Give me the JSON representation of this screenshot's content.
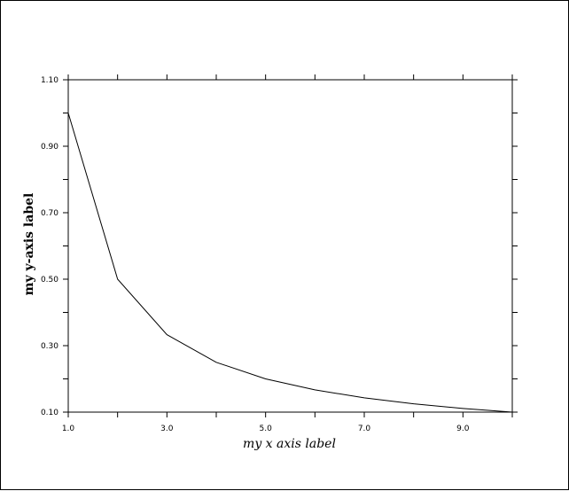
{
  "chart_data": {
    "type": "line",
    "title": "",
    "xlabel": "my x axis label",
    "ylabel": "my y-axis label",
    "xlim": [
      1,
      10
    ],
    "ylim": [
      0.1,
      1.1
    ],
    "grid": false,
    "x_ticks": [
      {
        "value": 1,
        "label": "1.0"
      },
      {
        "value": 3,
        "label": "3.0"
      },
      {
        "value": 5,
        "label": "5.0"
      },
      {
        "value": 7,
        "label": "7.0"
      },
      {
        "value": 9,
        "label": "9.0"
      }
    ],
    "x_minor_ticks": [
      2,
      4,
      6,
      8,
      10
    ],
    "y_ticks": [
      {
        "value": 0.1,
        "label": "0.10"
      },
      {
        "value": 0.3,
        "label": "0.30"
      },
      {
        "value": 0.5,
        "label": "0.50"
      },
      {
        "value": 0.7,
        "label": "0.70"
      },
      {
        "value": 0.9,
        "label": "0.90"
      },
      {
        "value": 1.1,
        "label": "1.10"
      }
    ],
    "y_minor_ticks": [
      0.2,
      0.4,
      0.6,
      0.8,
      1.0
    ],
    "series": [
      {
        "x": [
          1,
          2,
          3,
          4,
          5,
          6,
          7,
          8,
          9,
          10
        ],
        "y": [
          1.0,
          0.5,
          0.333,
          0.25,
          0.2,
          0.167,
          0.143,
          0.125,
          0.111,
          0.1
        ],
        "color": "#000000"
      }
    ]
  }
}
